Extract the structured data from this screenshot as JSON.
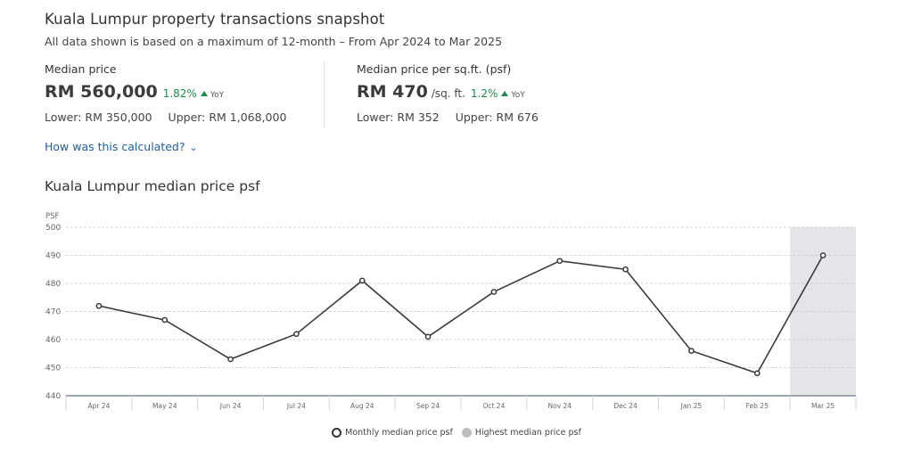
{
  "header": {
    "title": "Kuala Lumpur property transactions snapshot",
    "subtitle": "All data shown is based on a maximum of 12-month – From Apr 2024 to Mar 2025"
  },
  "stats": {
    "median_price": {
      "label": "Median price",
      "value": "RM 560,000",
      "change": "1.82%",
      "change_suffix": "YoY",
      "lower": "Lower: RM 350,000",
      "upper": "Upper: RM 1,068,000"
    },
    "median_psf": {
      "label": "Median price per sq.ft. (psf)",
      "value": "RM 470",
      "unit": "/sq. ft.",
      "change": "1.2%",
      "change_suffix": "YoY",
      "lower": "Lower: RM 352",
      "upper": "Upper: RM 676"
    },
    "how_link": "How was this calculated?"
  },
  "colors": {
    "accent_link": "#1f5f9e",
    "positive": "#1a8a4a",
    "line": "#3a3a3a",
    "highlight_band": "#e4e5e8"
  },
  "chart_data": {
    "type": "line",
    "title": "Kuala Lumpur median price psf",
    "ylabel": "PSF",
    "xlabel": "",
    "categories": [
      "Apr 24",
      "May 24",
      "Jun 24",
      "Jul 24",
      "Aug 24",
      "Sep 24",
      "Oct 24",
      "Nov 24",
      "Dec 24",
      "Jan 25",
      "Feb 25",
      "Mar 25"
    ],
    "series": [
      {
        "name": "Monthly median price psf",
        "values": [
          472,
          467,
          453,
          462,
          481,
          461,
          477,
          488,
          485,
          456,
          448,
          490
        ]
      }
    ],
    "highlight": {
      "name": "Highest median price psf",
      "category": "Mar 25"
    },
    "ylim": [
      440,
      500
    ],
    "yticks": [
      440,
      450,
      460,
      470,
      480,
      490,
      500
    ],
    "grid": true,
    "legend_position": "bottom-center"
  }
}
